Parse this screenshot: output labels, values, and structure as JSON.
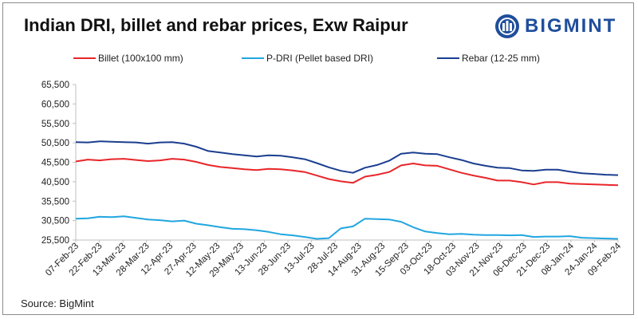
{
  "title": "Indian DRI, billet and rebar prices, Exw Raipur",
  "logo": {
    "text": "BIGMINT",
    "icon": "bigmint-logo-icon",
    "color": "#1f4e9c"
  },
  "source": "Source: BigMint",
  "chart_data": {
    "type": "line",
    "title": "Indian DRI, billet and rebar prices, Exw Raipur",
    "xlabel": "",
    "ylabel": "",
    "ylim": [
      25500,
      65500
    ],
    "yticks": [
      25500,
      30500,
      35500,
      40500,
      45500,
      50500,
      55500,
      60500,
      65500
    ],
    "ytick_labels": [
      "25,500",
      "30,500",
      "35,500",
      "40,500",
      "45,500",
      "50,500",
      "55,500",
      "60,500",
      "65,500"
    ],
    "x_tick_labels": [
      "07-Feb-23",
      "22-Feb-23",
      "13-Mar-23",
      "28-Mar-23",
      "12-Apr-23",
      "27-Apr-23",
      "12-May-23",
      "29-May-23",
      "13-Jun-23",
      "28-Jun-23",
      "13-Jul-23",
      "28-Jul-23",
      "14-Aug-23",
      "31-Aug-23",
      "15-Sep-23",
      "03-Oct-23",
      "18-Oct-23",
      "03-Nov-23",
      "21-Nov-23",
      "06-Dec-23",
      "21-Dec-23",
      "08-Jan-24",
      "24-Jan-24",
      "09-Feb-24"
    ],
    "grid": false,
    "legend_position": "top",
    "series": [
      {
        "name": "Billet (100x100 mm)",
        "color": "#e8262a",
        "values": [
          45700,
          46200,
          46000,
          46300,
          46400,
          46100,
          45800,
          46000,
          46400,
          46200,
          45600,
          44800,
          44300,
          44000,
          43700,
          43500,
          43800,
          43700,
          43400,
          43000,
          42100,
          41200,
          40600,
          40200,
          41800,
          42300,
          43000,
          44700,
          45200,
          44700,
          44600,
          43700,
          42800,
          42100,
          41500,
          40800,
          40800,
          40400,
          39800,
          40400,
          40400,
          40000,
          39900,
          39800,
          39700,
          39600
        ]
      },
      {
        "name": "P-DRI (Pellet based DRI)",
        "color": "#21a6e0",
        "values": [
          31000,
          31100,
          31500,
          31400,
          31600,
          31200,
          30800,
          30600,
          30300,
          30500,
          29700,
          29300,
          28800,
          28400,
          28300,
          28000,
          27600,
          27000,
          26700,
          26300,
          25800,
          26000,
          28500,
          29000,
          31000,
          30900,
          30800,
          30200,
          28800,
          27700,
          27300,
          27000,
          27100,
          26900,
          26800,
          26800,
          26700,
          26800,
          26300,
          26400,
          26400,
          26500,
          26100,
          26000,
          25900,
          25800
        ]
      },
      {
        "name": "Rebar (12-25 mm)",
        "color": "#1b3e8f",
        "values": [
          50700,
          50600,
          50900,
          50800,
          50700,
          50600,
          50300,
          50600,
          50700,
          50300,
          49500,
          48400,
          48000,
          47600,
          47300,
          47000,
          47300,
          47200,
          46800,
          46300,
          45300,
          44200,
          43300,
          42800,
          44100,
          44800,
          45900,
          47700,
          48000,
          47700,
          47600,
          46800,
          46100,
          45200,
          44600,
          44100,
          44000,
          43400,
          43300,
          43600,
          43600,
          43100,
          42700,
          42500,
          42300,
          42200
        ]
      }
    ]
  }
}
